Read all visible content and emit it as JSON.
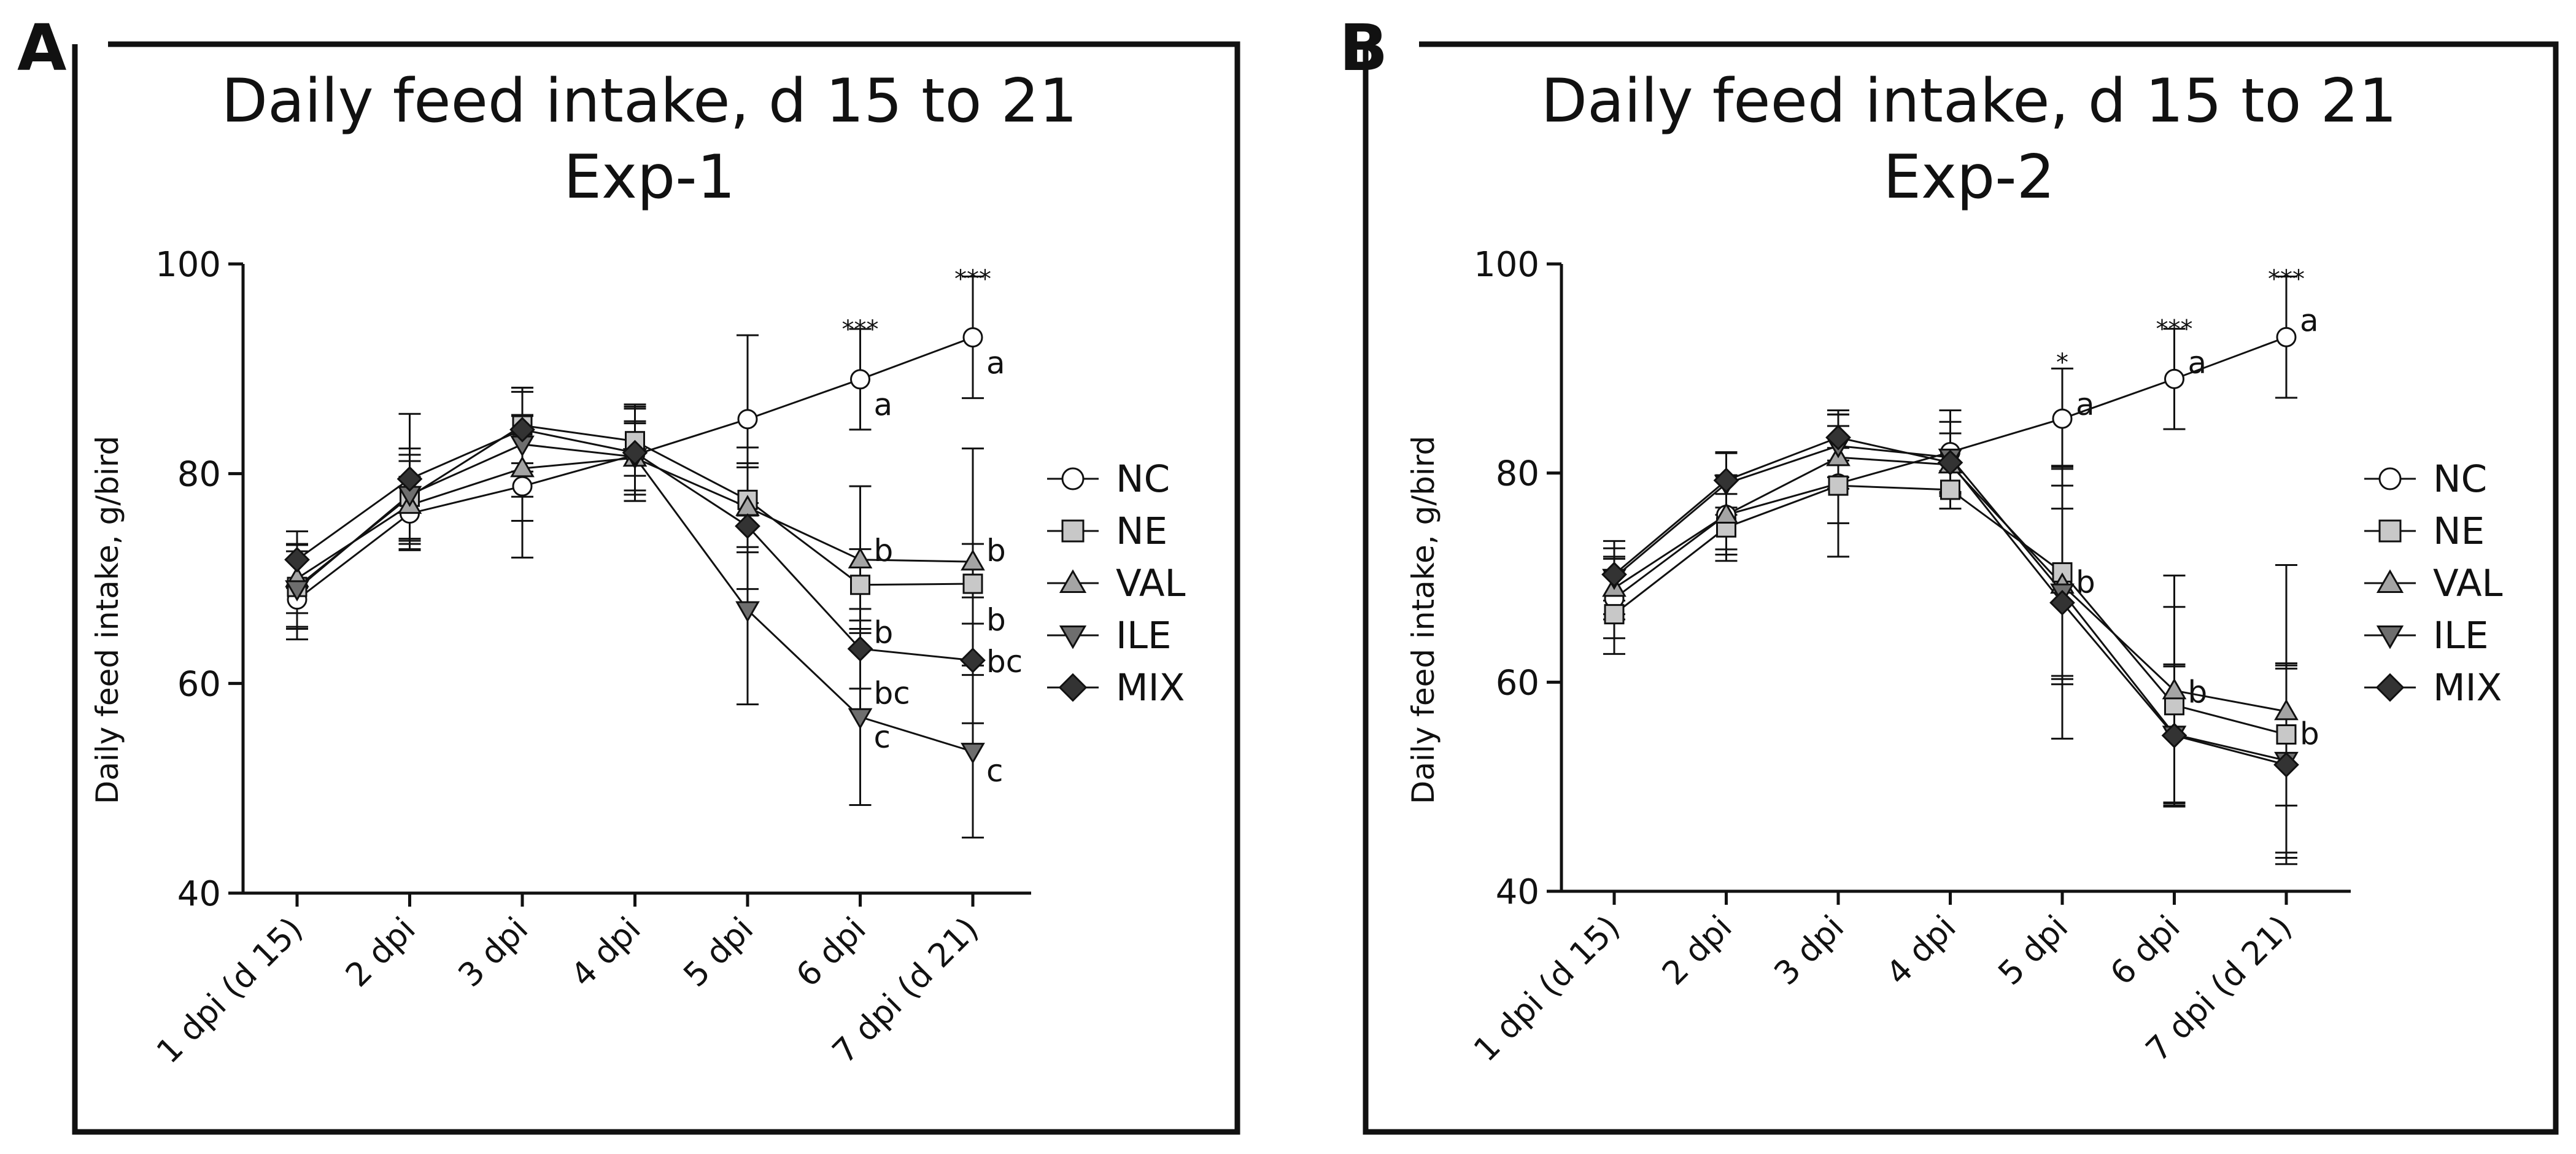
{
  "chart_data": [
    {
      "type": "line",
      "panel": "A",
      "title": [
        "Daily feed intake, d 15 to 21",
        "Exp-1"
      ],
      "ylabel": "Daily feed intake, g/bird",
      "xlabel": "",
      "ylim": [
        40,
        100
      ],
      "yticks": [
        40,
        60,
        80,
        100
      ],
      "categories": [
        "1 dpi (d 15)",
        "2 dpi",
        "3 dpi",
        "4 dpi",
        "5 dpi",
        "6 dpi",
        "7 dpi (d 21)"
      ],
      "legend": "right",
      "series": [
        {
          "name": "NC",
          "marker": "circle",
          "values": [
            68.0,
            76.2,
            78.8,
            81.8,
            85.2,
            89.0,
            93.0
          ],
          "err": [
            3.8,
            3.5,
            6.8,
            4.4,
            8.0,
            4.8,
            5.8
          ]
        },
        {
          "name": "NE",
          "marker": "square",
          "values": [
            69.2,
            77.8,
            84.6,
            83.1,
            77.5,
            69.4,
            69.5
          ],
          "err": [
            4.0,
            4.0,
            3.6,
            3.3,
            5.0,
            3.4,
            3.8
          ]
        },
        {
          "name": "VAL",
          "marker": "triangle",
          "values": [
            70.0,
            77.0,
            80.5,
            81.5,
            76.8,
            71.8,
            71.6
          ],
          "err": [
            3.3,
            4.2,
            5.0,
            3.5,
            3.8,
            7.0,
            10.8
          ]
        },
        {
          "name": "ILE",
          "marker": "triangle-down",
          "values": [
            69.0,
            78.0,
            82.8,
            81.6,
            67.0,
            56.8,
            53.5
          ],
          "err": [
            3.6,
            4.4,
            5.0,
            3.2,
            9.0,
            8.4,
            8.2
          ]
        },
        {
          "name": "MIX",
          "marker": "diamond",
          "values": [
            71.8,
            79.5,
            84.2,
            82.0,
            75.0,
            63.3,
            62.2
          ],
          "err": [
            2.7,
            6.2,
            4.0,
            4.6,
            6.0,
            3.8,
            6.0
          ]
        }
      ],
      "annotations": [
        {
          "cat": 5,
          "y": 86.5,
          "text": "a"
        },
        {
          "cat": 6,
          "y": 90.5,
          "text": "a"
        },
        {
          "cat": 5,
          "y": 72.6,
          "text": "b"
        },
        {
          "cat": 6,
          "y": 72.6,
          "text": "b"
        },
        {
          "cat": 5,
          "y": 64.8,
          "text": "b"
        },
        {
          "cat": 6,
          "y": 66.0,
          "text": "b"
        },
        {
          "cat": 5,
          "y": 59.0,
          "text": "bc"
        },
        {
          "cat": 6,
          "y": 62.0,
          "text": "bc"
        },
        {
          "cat": 5,
          "y": 54.8,
          "text": "c"
        },
        {
          "cat": 6,
          "y": 51.6,
          "text": "c"
        }
      ],
      "significance": [
        {
          "cat": 5,
          "y": 93.8,
          "text": "***"
        },
        {
          "cat": 6,
          "y": 98.6,
          "text": "***"
        }
      ]
    },
    {
      "type": "line",
      "panel": "B",
      "title": [
        "Daily feed intake, d 15 to 21",
        "Exp-2"
      ],
      "ylabel": "Daily feed intake, g/bird",
      "xlabel": "",
      "ylim": [
        40,
        100
      ],
      "yticks": [
        40,
        60,
        80,
        100
      ],
      "categories": [
        "1 dpi (d 15)",
        "2 dpi",
        "3 dpi",
        "4 dpi",
        "5 dpi",
        "6 dpi",
        "7 dpi (d 21)"
      ],
      "legend": "right",
      "series": [
        {
          "name": "NC",
          "marker": "circle",
          "values": [
            68.0,
            76.0,
            79.0,
            82.0,
            85.2,
            89.0,
            93.0
          ],
          "err": [
            3.8,
            3.3,
            7.0,
            4.0,
            4.8,
            4.8,
            5.8
          ]
        },
        {
          "name": "NE",
          "marker": "square",
          "values": [
            66.5,
            74.8,
            78.8,
            78.4,
            70.5,
            57.8,
            55.0
          ],
          "err": [
            3.8,
            3.2,
            3.6,
            1.8,
            10.2,
            9.4,
            6.8
          ]
        },
        {
          "name": "VAL",
          "marker": "triangle",
          "values": [
            69.0,
            76.0,
            81.5,
            80.8,
            69.3,
            59.2,
            57.2
          ],
          "err": [
            3.0,
            3.8,
            3.0,
            3.0,
            9.5,
            11.0,
            14.0
          ]
        },
        {
          "name": "ILE",
          "marker": "triangle-down",
          "values": [
            70.0,
            79.0,
            82.6,
            81.5,
            68.6,
            55.0,
            52.5
          ],
          "err": [
            3.5,
            3.0,
            3.0,
            3.4,
            8.0,
            6.5,
            8.8
          ]
        },
        {
          "name": "MIX",
          "marker": "diamond",
          "values": [
            70.3,
            79.3,
            83.4,
            81.0,
            67.6,
            54.9,
            52.1
          ],
          "err": [
            2.5,
            2.6,
            2.2,
            2.8,
            13.0,
            6.8,
            9.5
          ]
        }
      ],
      "annotations": [
        {
          "cat": 4,
          "y": 86.5,
          "text": "a"
        },
        {
          "cat": 5,
          "y": 90.5,
          "text": "a"
        },
        {
          "cat": 6,
          "y": 94.5,
          "text": "a"
        },
        {
          "cat": 4,
          "y": 69.5,
          "text": "b"
        },
        {
          "cat": 5,
          "y": 59.0,
          "text": "b"
        },
        {
          "cat": 6,
          "y": 55.0,
          "text": "b"
        }
      ],
      "significance": [
        {
          "cat": 4,
          "y": 90.6,
          "text": "*"
        },
        {
          "cat": 5,
          "y": 93.8,
          "text": "***"
        },
        {
          "cat": 6,
          "y": 98.6,
          "text": "***"
        }
      ]
    }
  ]
}
